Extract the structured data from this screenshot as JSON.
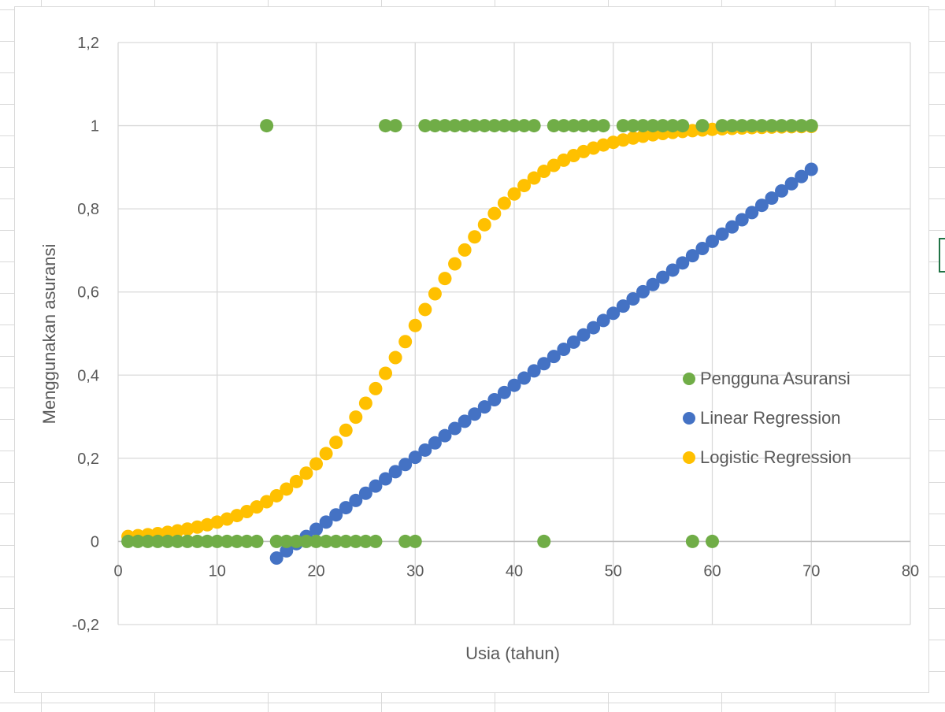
{
  "chart_data": {
    "type": "scatter",
    "title": "",
    "xlabel": "Usia (tahun)",
    "ylabel": "Menggunakan asuransi",
    "xlim": [
      0,
      80
    ],
    "ylim": [
      -0.2,
      1.2
    ],
    "xticks": [
      0,
      10,
      20,
      30,
      40,
      50,
      60,
      70,
      80
    ],
    "xtick_labels": [
      "0",
      "10",
      "20",
      "30",
      "40",
      "50",
      "60",
      "70",
      "80"
    ],
    "yticks": [
      -0.2,
      0,
      0.2,
      0.4,
      0.6,
      0.8,
      1,
      1.2
    ],
    "ytick_labels": [
      "-0,2",
      "0",
      "0,2",
      "0,4",
      "0,6",
      "0,8",
      "1",
      "1,2"
    ],
    "grid": true,
    "legend_position": "right",
    "series": [
      {
        "name": "Pengguna Asuransi",
        "color": "#70ad47",
        "x": [
          1,
          2,
          3,
          4,
          5,
          6,
          7,
          8,
          9,
          10,
          11,
          12,
          13,
          14,
          15,
          16,
          17,
          18,
          19,
          20,
          21,
          22,
          23,
          24,
          25,
          26,
          27,
          28,
          29,
          30,
          31,
          32,
          33,
          34,
          35,
          36,
          37,
          38,
          39,
          40,
          41,
          42,
          43,
          44,
          45,
          46,
          47,
          48,
          49,
          51,
          52,
          53,
          54,
          55,
          56,
          57,
          58,
          59,
          60,
          61,
          62,
          63,
          64,
          65,
          66,
          67,
          68,
          69,
          70
        ],
        "y": [
          0,
          0,
          0,
          0,
          0,
          0,
          0,
          0,
          0,
          0,
          0,
          0,
          0,
          0,
          1,
          0,
          0,
          0,
          0,
          0,
          0,
          0,
          0,
          0,
          0,
          0,
          1,
          1,
          0,
          0,
          1,
          1,
          1,
          1,
          1,
          1,
          1,
          1,
          1,
          1,
          1,
          1,
          0,
          1,
          1,
          1,
          1,
          1,
          1,
          1,
          1,
          1,
          1,
          1,
          1,
          1,
          0,
          1,
          0,
          1,
          1,
          1,
          1,
          1,
          1,
          1,
          1,
          1,
          1
        ]
      },
      {
        "name": "Linear Regression",
        "color": "#4472c4",
        "x_start": 16,
        "x_end": 70,
        "y_start": -0.04,
        "y_end": 0.895
      },
      {
        "name": "Logistic Regression",
        "color": "#ffc000",
        "x_start": 1,
        "x_end": 70,
        "x_mid": 29.5,
        "slope": 0.155
      }
    ]
  }
}
